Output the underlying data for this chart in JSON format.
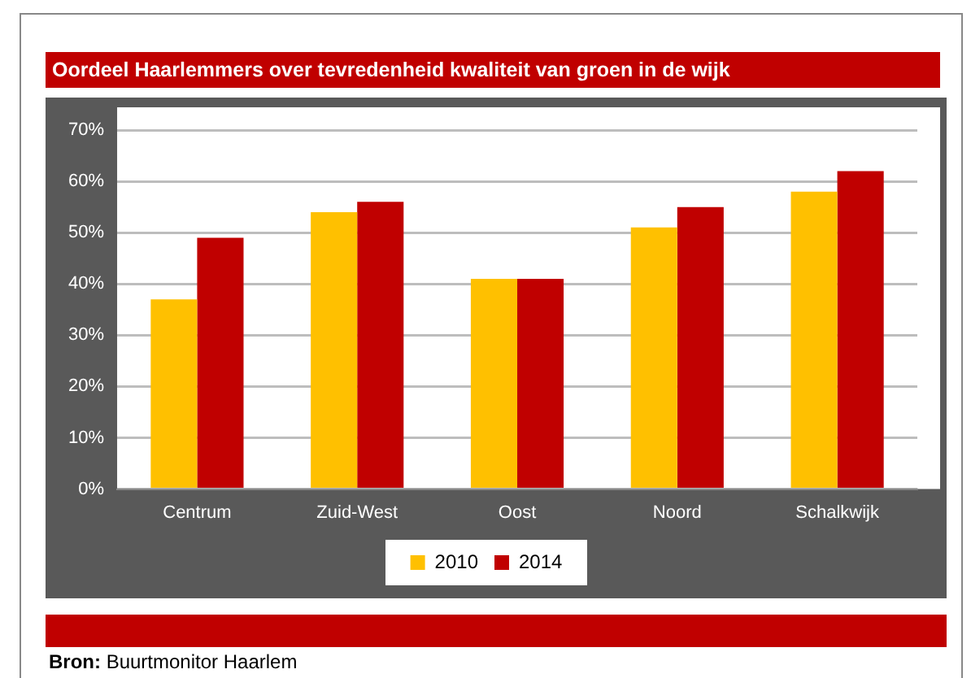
{
  "chart_data": {
    "type": "bar",
    "title": "Oordeel Haarlemmers over tevredenheid kwaliteit van groen in de wijk",
    "categories": [
      "Centrum",
      "Zuid-West",
      "Oost",
      "Noord",
      "Schalkwijk"
    ],
    "series": [
      {
        "name": "2010",
        "color": "#ffc000",
        "values": [
          37,
          54,
          41,
          51,
          58
        ]
      },
      {
        "name": "2014",
        "color": "#c00000",
        "values": [
          49,
          56,
          41,
          55,
          62
        ]
      }
    ],
    "ylim": [
      0,
      70
    ],
    "yticks": [
      {
        "value": 0,
        "label": "0%"
      },
      {
        "value": 10,
        "label": "10%"
      },
      {
        "value": 20,
        "label": "20%"
      },
      {
        "value": 30,
        "label": "30%"
      },
      {
        "value": 40,
        "label": "40%"
      },
      {
        "value": 50,
        "label": "50%"
      },
      {
        "value": 60,
        "label": "60%"
      },
      {
        "value": 70,
        "label": "70%"
      }
    ],
    "grid": "y",
    "legend": "bottom",
    "annotations": [
      "Bron: Buurtmonitor Haarlem"
    ]
  }
}
